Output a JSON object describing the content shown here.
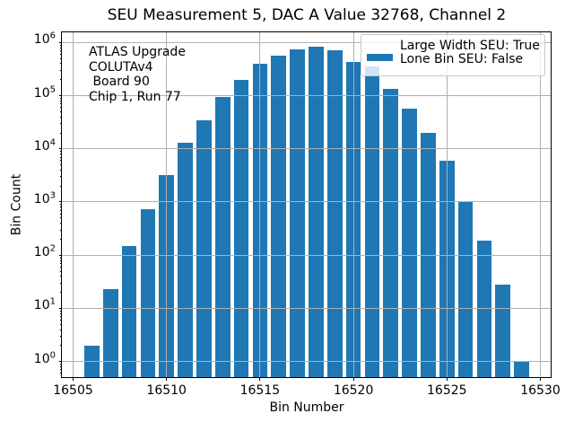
{
  "chart_data": {
    "type": "bar",
    "title": "SEU Measurement 5, DAC A Value 32768, Channel 2",
    "xlabel": "Bin Number",
    "ylabel": "Bin Count",
    "yscale": "log",
    "categories": [
      16506,
      16507,
      16508,
      16509,
      16510,
      16511,
      16512,
      16513,
      16514,
      16515,
      16516,
      16517,
      16518,
      16519,
      16520,
      16521,
      16522,
      16523,
      16524,
      16525,
      16526,
      16527,
      16528,
      16529
    ],
    "values": [
      2,
      23,
      150,
      730,
      3200,
      13000,
      35000,
      93000,
      200000,
      400000,
      560000,
      730000,
      820000,
      720000,
      430000,
      350000,
      135000,
      57000,
      20000,
      6000,
      1000,
      190,
      28,
      1
    ],
    "xticks": [
      16505,
      16510,
      16515,
      16520,
      16525,
      16530
    ],
    "ytick_exponents": [
      0,
      1,
      2,
      3,
      4,
      5,
      6
    ],
    "xlim": [
      16504.4,
      16530.6
    ],
    "ylim": [
      0.5,
      1550000
    ],
    "grid": true,
    "bar_color": "#1f77b4",
    "grid_color": "#b0b0b0",
    "legend_position": "upper right"
  },
  "annotation": {
    "lines": [
      "ATLAS Upgrade",
      "COLUTAv4",
      " Board 90",
      "Chip 1, Run 77"
    ]
  },
  "legend": {
    "entries": [
      {
        "label": "Large Width SEU: True",
        "swatch": "#1f77b4"
      },
      {
        "label": "Lone Bin SEU: False",
        "swatch": null
      }
    ]
  }
}
